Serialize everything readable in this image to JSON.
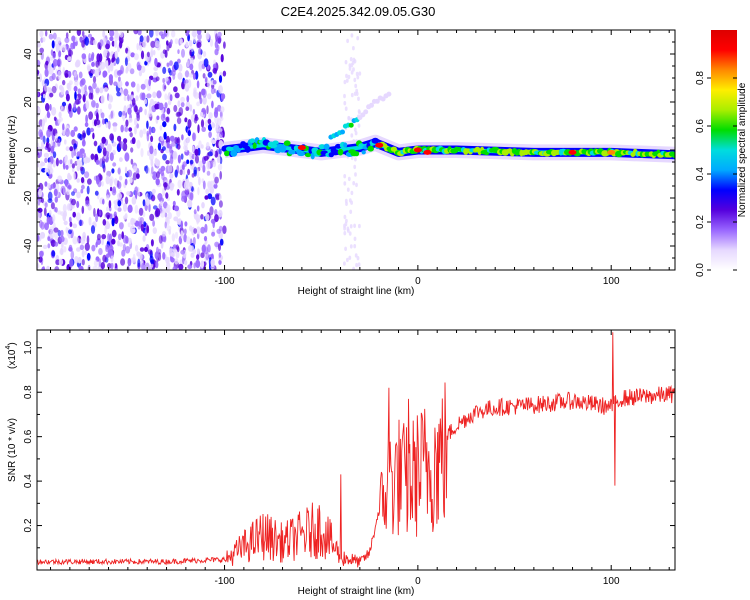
{
  "title": "C2E4.2025.342.09.05.G30",
  "chart_data": [
    {
      "type": "heatmap",
      "name": "spectrogram",
      "xlabel": "Height of straight line (km)",
      "ylabel": "Frequency (Hz)",
      "xlim": [
        -197,
        133
      ],
      "ylim": [
        -50,
        50
      ],
      "x_ticks": [
        -100,
        0,
        100
      ],
      "y_ticks": [
        -40,
        -20,
        0,
        20,
        40
      ],
      "colorbar": {
        "label": "Normalized spectral amplitude",
        "range": [
          0,
          1
        ],
        "ticks": [
          0.0,
          0.2,
          0.4,
          0.6,
          0.8
        ],
        "colormap": [
          "#ffffff",
          "#e6d8ff",
          "#9966ff",
          "#5500dd",
          "#0000ff",
          "#00aaff",
          "#00dddd",
          "#00dd00",
          "#aaee00",
          "#ffee00",
          "#ff8800",
          "#ff0000",
          "#dd0000"
        ]
      },
      "features": {
        "noise_region_x": [
          -197,
          -100
        ],
        "carrier_track": [
          [
            -100,
            0
          ],
          [
            -90,
            1
          ],
          [
            -80,
            2
          ],
          [
            -70,
            1
          ],
          [
            -60,
            0
          ],
          [
            -50,
            -1
          ],
          [
            -40,
            0
          ],
          [
            -30,
            1
          ],
          [
            -22,
            3
          ],
          [
            -10,
            -1
          ],
          [
            0,
            0
          ],
          [
            20,
            0
          ],
          [
            60,
            -1
          ],
          [
            100,
            -1
          ],
          [
            133,
            -2
          ]
        ],
        "secondary_track": [
          [
            -45,
            6
          ],
          [
            -35,
            10
          ],
          [
            -25,
            18
          ],
          [
            -15,
            24
          ]
        ],
        "peak_points": [
          [
            -60,
            1,
            0.95
          ],
          [
            -20,
            2,
            0.9
          ],
          [
            0,
            0,
            0.95
          ],
          [
            5,
            -1,
            0.9
          ],
          [
            80,
            -1,
            0.9
          ],
          [
            100,
            -1,
            0.85
          ]
        ]
      }
    },
    {
      "type": "line",
      "name": "snr",
      "color": "#ee2222",
      "xlabel": "Height of straight line (km)",
      "ylabel": "SNR (10 * v/v)",
      "multiplier_label": "(x10",
      "multiplier_exp": "4",
      "xlim": [
        -197,
        133
      ],
      "ylim": [
        0,
        1.08
      ],
      "x_ticks": [
        -100,
        0,
        100
      ],
      "y_ticks": [
        0.2,
        0.4,
        0.6,
        0.8,
        1.0
      ],
      "envelope": [
        [
          -197,
          0.04
        ],
        [
          -130,
          0.04
        ],
        [
          -100,
          0.05
        ],
        [
          -90,
          0.12
        ],
        [
          -80,
          0.18
        ],
        [
          -70,
          0.14
        ],
        [
          -60,
          0.18
        ],
        [
          -50,
          0.22
        ],
        [
          -40,
          0.07
        ],
        [
          -30,
          0.04
        ],
        [
          -25,
          0.08
        ],
        [
          -20,
          0.28
        ],
        [
          -15,
          0.45
        ],
        [
          -10,
          0.48
        ],
        [
          -5,
          0.44
        ],
        [
          0,
          0.5
        ],
        [
          10,
          0.56
        ],
        [
          20,
          0.66
        ],
        [
          30,
          0.72
        ],
        [
          40,
          0.74
        ],
        [
          60,
          0.75
        ],
        [
          80,
          0.77
        ],
        [
          100,
          0.74
        ],
        [
          105,
          0.78
        ],
        [
          133,
          0.8
        ]
      ],
      "spikes": [
        [
          -40,
          0.43
        ],
        [
          -15,
          0.82
        ],
        [
          -5,
          0.77
        ],
        [
          101,
          1.07
        ],
        [
          102,
          0.38
        ]
      ]
    }
  ]
}
